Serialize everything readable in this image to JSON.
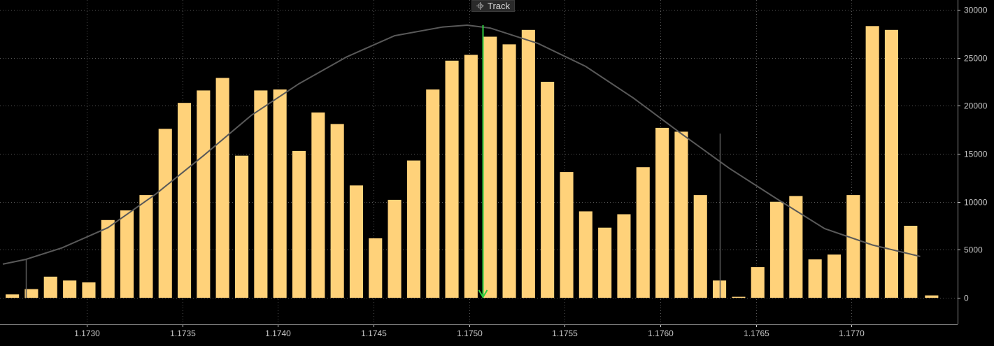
{
  "toolbar": {
    "track_label": "Track",
    "track_icon": "crosshair-icon"
  },
  "colors": {
    "background": "#000000",
    "bar": "#ffd27a",
    "curve": "#595959",
    "grid": "#5a5a5a",
    "axis_text": "#c8c8c8",
    "marker": "#2ecc40"
  },
  "chart_data": {
    "type": "bar",
    "title": "",
    "xlabel": "",
    "ylabel": "",
    "grid": true,
    "ylim": [
      -2500,
      30500
    ],
    "xlim": [
      1.17256,
      1.17749
    ],
    "x_ticks": [
      1.173,
      1.1735,
      1.174,
      1.1745,
      1.175,
      1.1755,
      1.176,
      1.1765,
      1.177
    ],
    "x_tick_labels": [
      "1.1730",
      "1.1735",
      "1.1740",
      "1.1745",
      "1.1750",
      "1.1755",
      "1.1760",
      "1.1765",
      "1.1770"
    ],
    "y_ticks": [
      0,
      5000,
      10000,
      15000,
      20000,
      25000,
      30000
    ],
    "y_tick_labels": [
      "0",
      "5000",
      "10000",
      "15000",
      "20000",
      "25000",
      "30000"
    ],
    "y_axis_side": "right",
    "bar_width": 7e-05,
    "x": [
      1.17261,
      1.17271,
      1.17281,
      1.17291,
      1.17301,
      1.17311,
      1.17321,
      1.17331,
      1.17341,
      1.17351,
      1.17361,
      1.17371,
      1.17381,
      1.17391,
      1.17401,
      1.17411,
      1.17421,
      1.17431,
      1.17441,
      1.17451,
      1.17461,
      1.17471,
      1.17481,
      1.17491,
      1.17501,
      1.17511,
      1.17521,
      1.17531,
      1.17541,
      1.17551,
      1.17561,
      1.17571,
      1.17581,
      1.17591,
      1.17601,
      1.17611,
      1.17621,
      1.17631,
      1.17641,
      1.17651,
      1.17661,
      1.17671,
      1.17681,
      1.17691,
      1.17701,
      1.17711,
      1.17721,
      1.17731
    ],
    "values": [
      350,
      900,
      2200,
      1800,
      1600,
      8100,
      9100,
      10700,
      17600,
      20300,
      21600,
      22900,
      14800,
      21600,
      21700,
      15300,
      19300,
      18100,
      11700,
      6200,
      10200,
      14300,
      21700,
      24700,
      25300,
      27200,
      26400,
      27900,
      22500,
      13100,
      9000,
      7300,
      8700,
      13600,
      17700,
      17300,
      10700,
      1800,
      100,
      3200,
      10000,
      10600,
      4000,
      4500,
      10700,
      28300,
      27900,
      7500
    ],
    "last_bar": {
      "x": 1.17742,
      "value": 250
    },
    "curve": {
      "x": [
        1.17256,
        1.17268,
        1.17287,
        1.17311,
        1.17336,
        1.17361,
        1.17386,
        1.17411,
        1.17436,
        1.17461,
        1.17486,
        1.17499,
        1.17511,
        1.17536,
        1.17561,
        1.17586,
        1.17611,
        1.17636,
        1.17661,
        1.17686,
        1.17711,
        1.17736
      ],
      "y": [
        3500,
        4000,
        5200,
        7300,
        10800,
        14800,
        19000,
        22300,
        25100,
        27300,
        28200,
        28400,
        28100,
        26500,
        24100,
        20800,
        17100,
        13500,
        10300,
        7200,
        5500,
        4300
      ]
    },
    "drop_lines": [
      {
        "x": 1.17268,
        "y": 4000
      },
      {
        "x": 1.17631,
        "y": 17100
      }
    ],
    "marker": {
      "x": 1.17507,
      "top": 28400,
      "bottom": 0
    }
  }
}
